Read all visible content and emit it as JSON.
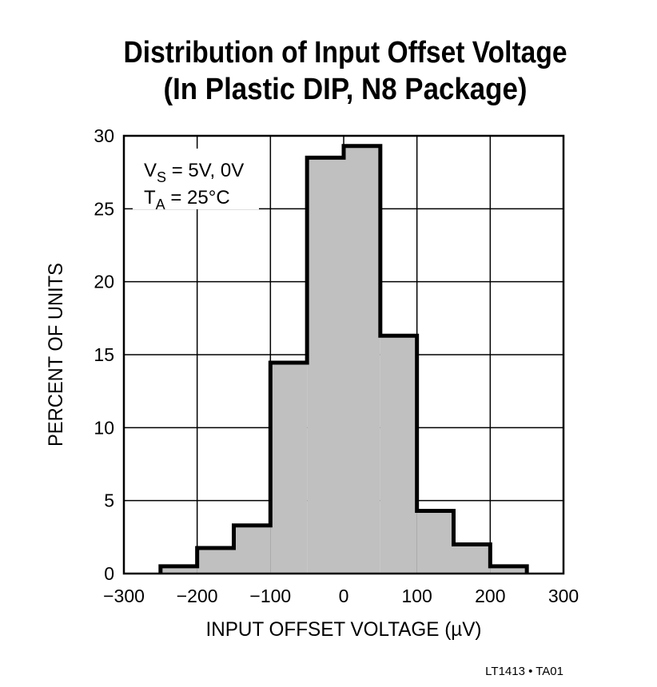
{
  "chart_data": {
    "type": "histogram",
    "title": [
      "Distribution of Input Offset Voltage",
      "(In Plastic DIP, N8 Package)"
    ],
    "x_label": "INPUT OFFSET VOLTAGE (µV)",
    "y_label": "PERCENT OF UNITS",
    "annotations": [
      {
        "main": "V",
        "sub": "S",
        "rest": " = 5V, 0V"
      },
      {
        "main": "T",
        "sub": "A",
        "rest": " = 25°C"
      }
    ],
    "footer": "LT1413 • TA01",
    "bins": [
      -250,
      -200,
      -150,
      -100,
      -50,
      0,
      50,
      100,
      150,
      200,
      250
    ],
    "values": [
      0.5,
      1.75,
      3.3,
      14.45,
      28.5,
      29.3,
      16.3,
      4.3,
      2.0,
      0.5
    ],
    "color": "#c0c0c0",
    "xlim": [
      -300,
      300
    ],
    "xticks": [
      {
        "value": -300,
        "label": "−300"
      },
      {
        "value": -200,
        "label": "−200"
      },
      {
        "value": -100,
        "label": "−100"
      },
      0,
      100,
      200,
      300
    ],
    "ylim": [
      0,
      30
    ],
    "yticks": [
      0,
      5,
      10,
      15,
      20,
      25,
      30
    ],
    "grid": true
  }
}
